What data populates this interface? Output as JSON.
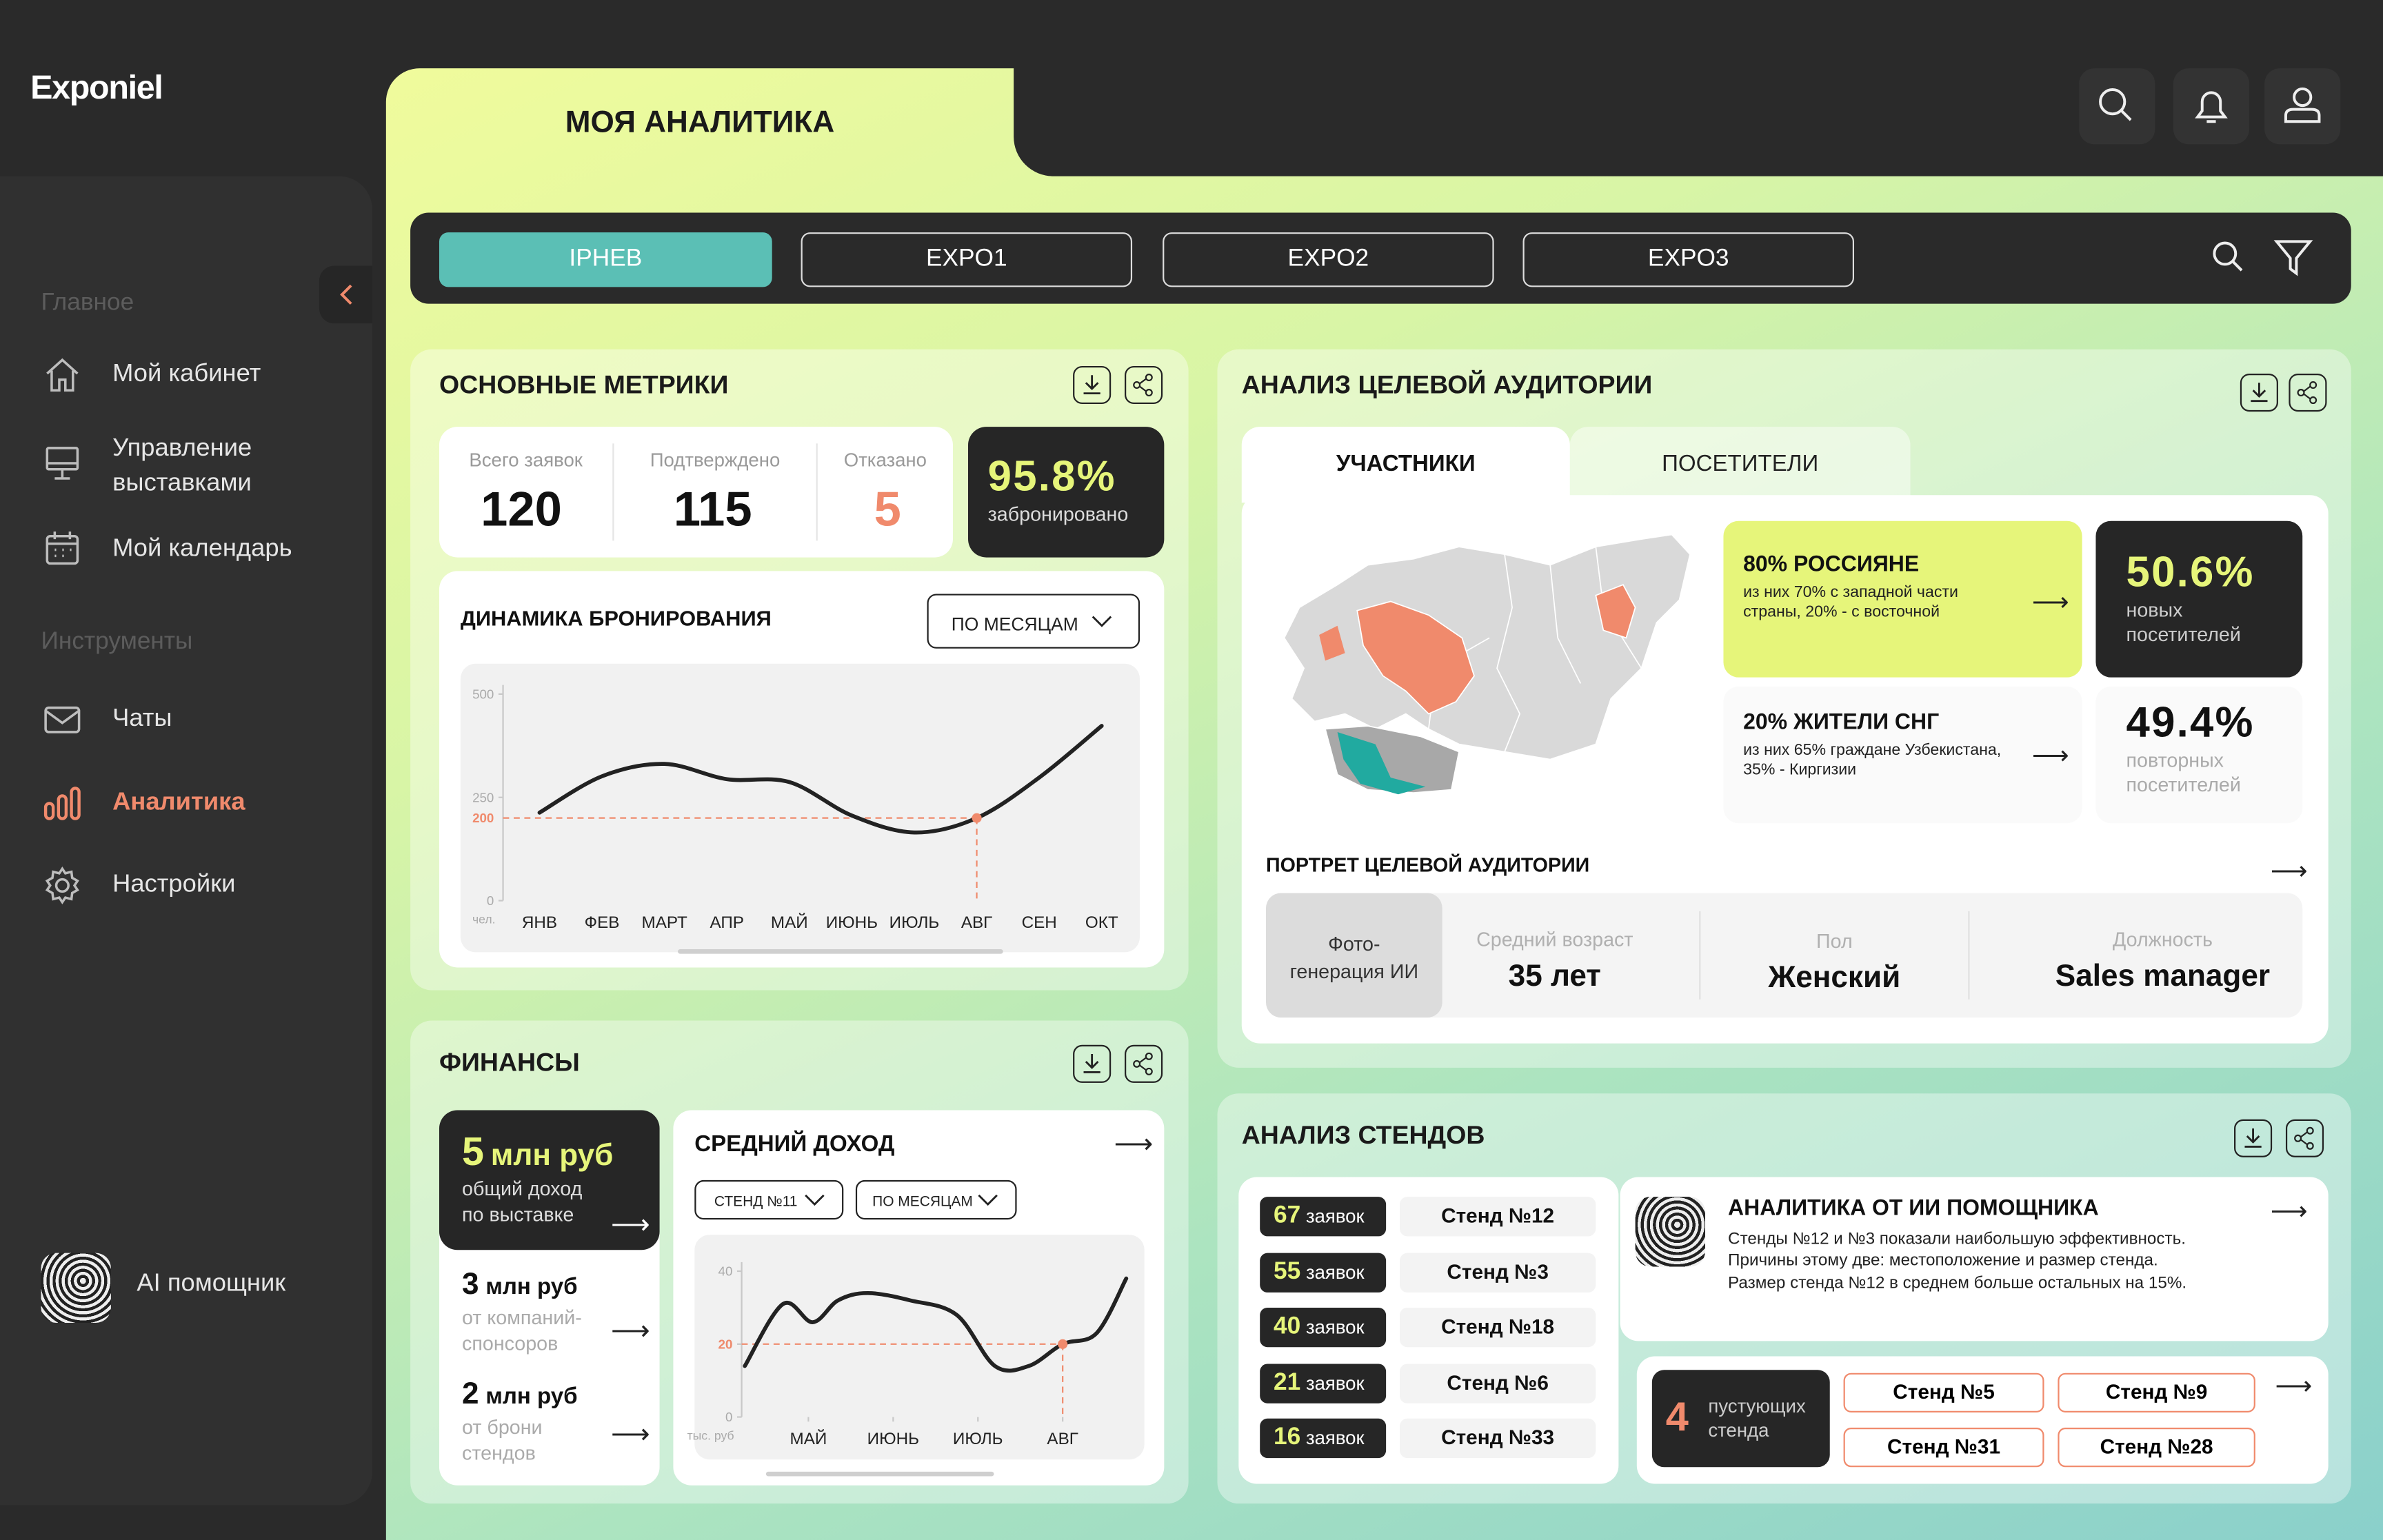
{
  "brand": "Exponiel",
  "sidebar": {
    "groups": [
      {
        "title": "Главное",
        "items": [
          "Мой кабинет",
          "Управление выставками",
          "Мой календарь"
        ]
      },
      {
        "title": "Инструменты",
        "items": [
          "Чаты",
          "Аналитика",
          "Настройки"
        ]
      }
    ],
    "assistant": "AI помощник"
  },
  "page_title": "МОЯ АНАЛИТИКА",
  "exhibitions": [
    "IPHEB",
    "EXPO1",
    "EXPO2",
    "EXPO3"
  ],
  "metrics": {
    "title": "ОСНОВНЫЕ МЕТРИКИ",
    "stats": [
      {
        "label": "Всего заявок",
        "value": 120
      },
      {
        "label": "Подтверждено",
        "value": 115
      },
      {
        "label": "Отказано",
        "value": 5
      }
    ],
    "booked": {
      "value": "95.8%",
      "label": "забронировано"
    },
    "booking_chart": {
      "type": "line",
      "title": "ДИНАМИКА БРОНИРОВАНИЯ",
      "period": "ПО МЕСЯЦАМ",
      "unit": "чел.",
      "categories": [
        "ЯНВ",
        "ФЕВ",
        "МАРТ",
        "АПР",
        "МАЙ",
        "ИЮНЬ",
        "ИЮЛЬ",
        "АВГ",
        "СЕН",
        "ОКТ"
      ],
      "values": [
        213,
        301,
        331,
        294,
        287,
        206,
        165,
        200,
        298,
        423
      ],
      "ylim": [
        0,
        500
      ],
      "yticks": [
        0,
        250,
        500
      ],
      "marker": 200,
      "color": "#222222",
      "marker_color": "#f08a6c"
    }
  },
  "finances": {
    "title": "ФИНАНСЫ",
    "total": {
      "amount": 5,
      "unit": "млн руб",
      "label": "общий доход по выставке"
    },
    "sources": [
      {
        "amount": 3,
        "unit": "млн руб",
        "label": "от компаний-спонсоров"
      },
      {
        "amount": 2,
        "unit": "млн руб",
        "label": "от брони стендов"
      }
    ],
    "income_chart": {
      "type": "line",
      "title": "СРЕДНИЙ ДОХОД",
      "stand": "СТЕНД №11",
      "period": "ПО МЕСЯЦАМ",
      "unit": "тыс. руб",
      "x": [
        -0.75,
        -0.3,
        0.05,
        0.35,
        0.7,
        1.2,
        1.75,
        2.2,
        2.6,
        3,
        3.4,
        3.75
      ],
      "values": [
        14,
        31,
        26,
        32,
        34,
        32,
        28,
        14,
        14,
        20,
        23,
        38
      ],
      "xlim": [
        -1.2,
        4
      ],
      "xticks": [
        {
          "value": 0,
          "label": "МАЙ"
        },
        {
          "value": 1,
          "label": "ИЮНЬ"
        },
        {
          "value": 2,
          "label": "ИЮЛЬ"
        },
        {
          "value": 3,
          "label": "АВГ"
        }
      ],
      "ylim": [
        0,
        40
      ],
      "yticks": [
        0,
        20,
        40
      ],
      "marker": 20,
      "color": "#222222",
      "marker_color": "#f08a6c"
    }
  },
  "audience": {
    "title": "АНАЛИЗ ЦЕЛЕВОЙ АУДИТОРИИ",
    "tabs": [
      "УЧАСТНИКИ",
      "ПОСЕТИТЕЛИ"
    ],
    "insights": [
      {
        "title": "80% РОССИЯНЕ",
        "text": "из них 70% с западной части страны, 20% - с восточной"
      },
      {
        "title": "20% ЖИТЕЛИ СНГ",
        "text": "из них 65% граждане Узбекистана, 35% - Киргизии"
      }
    ],
    "stats": [
      {
        "value": "50.6%",
        "label": "новых посетителей"
      },
      {
        "value": "49.4%",
        "label": "повторных посетителей"
      }
    ],
    "portrait": {
      "title": "ПОРТРЕТ ЦЕЛЕВОЙ АУДИТОРИИ",
      "photo": "Фото-генерация ИИ",
      "fields": [
        {
          "label": "Средний возраст",
          "value": "35 лет"
        },
        {
          "label": "Пол",
          "value": "Женский"
        },
        {
          "label": "Должность",
          "value": "Sales manager"
        }
      ]
    }
  },
  "stands": {
    "title": "АНАЛИЗ СТЕНДОВ",
    "rows": [
      {
        "count": 67,
        "unit": "заявок",
        "stand": "Стенд №12"
      },
      {
        "count": 55,
        "unit": "заявок",
        "stand": "Стенд №3"
      },
      {
        "count": 40,
        "unit": "заявок",
        "stand": "Стенд №18"
      },
      {
        "count": 21,
        "unit": "заявок",
        "stand": "Стенд №6"
      },
      {
        "count": 16,
        "unit": "заявок",
        "stand": "Стенд №33"
      }
    ],
    "ai": {
      "title": "АНАЛИТИКА ОТ ИИ ПОМОЩНИКА",
      "lines": [
        "Стенды №12 и №3 показали наибольшую эффективность.",
        "Причины этому две: местоположение и размер стенда.",
        "Размер стенда №12 в среднем больше остальных на 15%."
      ]
    },
    "empty": {
      "count": 4,
      "label": "пустующих стенда",
      "stands": [
        "Стенд №5",
        "Стенд №9",
        "Стенд №31",
        "Стенд №28"
      ]
    }
  }
}
